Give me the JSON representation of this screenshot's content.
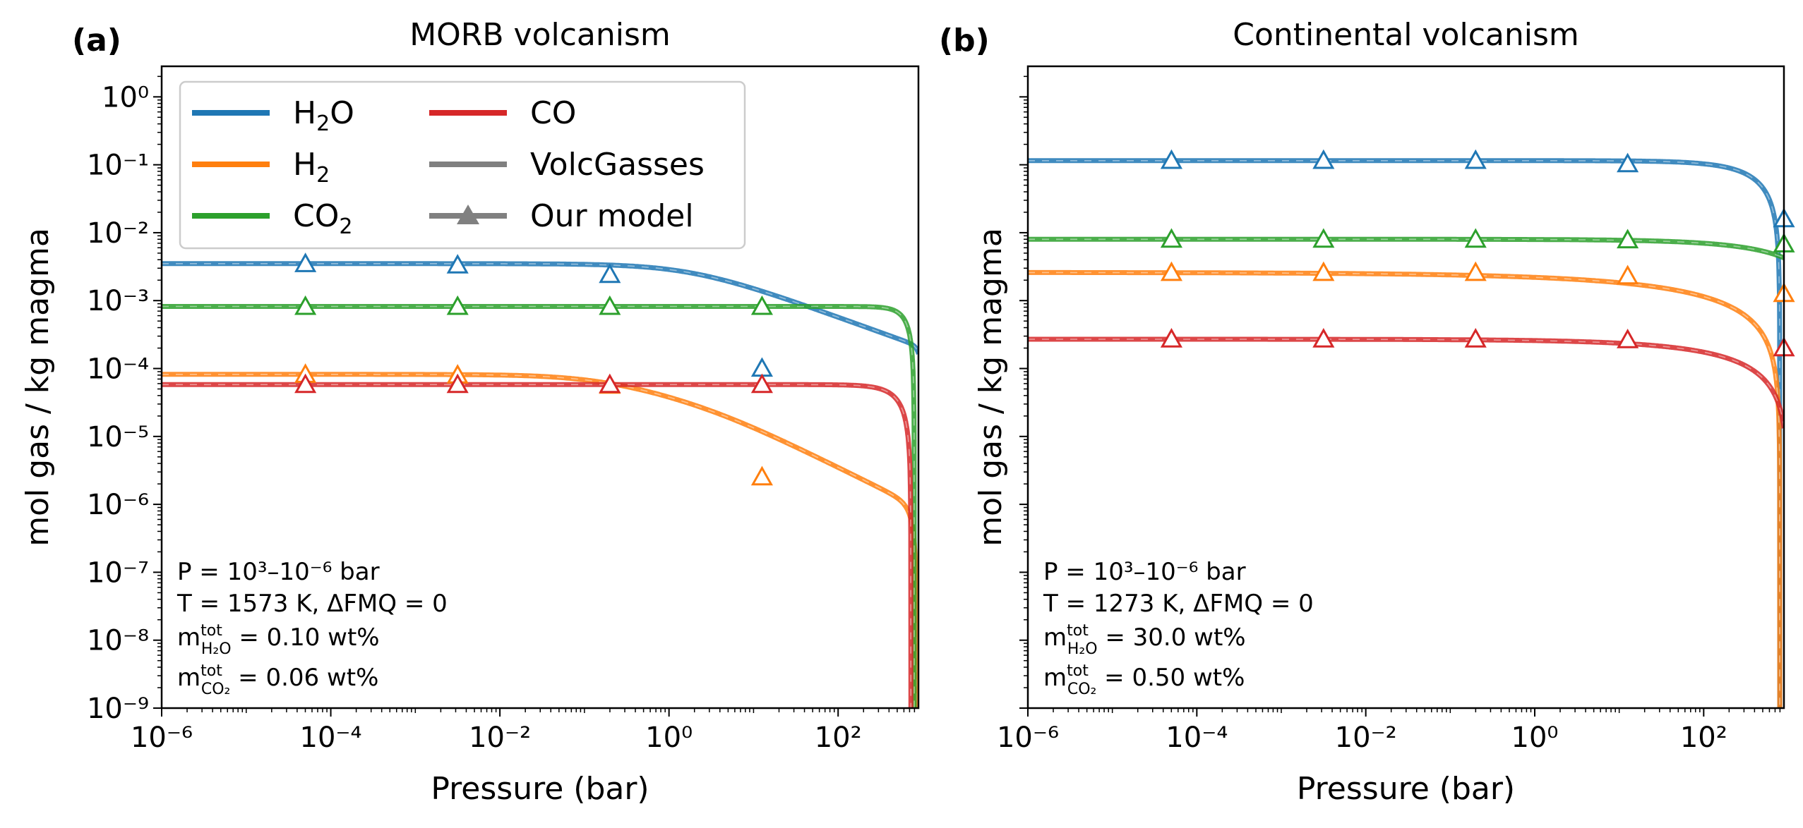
{
  "chart_data": [
    {
      "type": "line",
      "panel_label": "(a)",
      "title": "MORB volcanism",
      "xlabel": "Pressure (bar)",
      "ylabel": "mol gas / kg magma",
      "xscale": "log",
      "yscale": "log",
      "xlim_exp": [
        -6,
        2.95
      ],
      "ylim_exp": [
        -9,
        0.45
      ],
      "xticks_exp": [
        -6,
        -4,
        -2,
        0,
        2
      ],
      "yticks_exp": [
        0,
        -1,
        -2,
        -3,
        -4,
        -5,
        -6,
        -7,
        -8,
        -9
      ],
      "legend": {
        "placement": "top-left",
        "entries": [
          {
            "key": "h2o",
            "base": "H",
            "sub": "2",
            "tail": "O",
            "style": "line",
            "color": "#1f77b4"
          },
          {
            "key": "h2",
            "base": "H",
            "sub": "2",
            "tail": "",
            "style": "line",
            "color": "#ff7f0e"
          },
          {
            "key": "co2",
            "base": "CO",
            "sub": "2",
            "tail": "",
            "style": "line",
            "color": "#2ca02c"
          },
          {
            "key": "co",
            "base": "CO",
            "sub": "",
            "tail": "",
            "style": "line",
            "color": "#d62728"
          },
          {
            "key": "volcgasses",
            "base": "VolcGasses",
            "sub": "",
            "tail": "",
            "style": "line",
            "color": "#808080"
          },
          {
            "key": "ourmodel",
            "base": "Our model",
            "sub": "",
            "tail": "",
            "style": "marker",
            "color": "#808080"
          }
        ]
      },
      "annotation": {
        "p_line": "P = 10³–10⁻⁶ bar",
        "t_line": "T = 1573 K, ΔFMQ = 0",
        "m1_value": " = 0.10 wt%",
        "m2_value": " = 0.06 wt%",
        "m_label": "m",
        "sup": "tot",
        "sub1": "H₂O",
        "sub2": "CO₂"
      },
      "markers_x_exp": [
        -4.3,
        -2.5,
        -0.7,
        1.1
      ],
      "series": [
        {
          "name": "H2O",
          "color": "#1f77b4",
          "kind": "water",
          "y0": 0.0035,
          "b": 0.45,
          "tail_dip": 0.85,
          "markers": [
            -2.46,
            -2.48,
            -2.62,
            -4.0
          ]
        },
        {
          "name": "H2",
          "color": "#ff7f0e",
          "kind": "hydrogen",
          "y0": 8.2e-05,
          "markers": [
            -4.09,
            -4.1,
            -4.25,
            -5.6
          ]
        },
        {
          "name": "CO2",
          "color": "#2ca02c",
          "kind": "flat",
          "y0": 0.00082,
          "pc": 2.9,
          "k": 3.8,
          "markers": [
            -3.09,
            -3.09,
            -3.09,
            -3.09
          ]
        },
        {
          "name": "CO",
          "color": "#d62728",
          "kind": "flat",
          "y0": 5.8e-05,
          "pc": 2.86,
          "k": 2.4,
          "markers": [
            -4.24,
            -4.24,
            -4.24,
            -4.24
          ]
        }
      ]
    },
    {
      "type": "line",
      "panel_label": "(b)",
      "title": "Continental volcanism",
      "xlabel": "Pressure (bar)",
      "ylabel": "mol gas / kg magma",
      "xscale": "log",
      "yscale": "log",
      "xlim_exp": [
        -6,
        2.95
      ],
      "ylim_exp": [
        -9,
        0.45
      ],
      "xticks_exp": [
        -6,
        -4,
        -2,
        0,
        2
      ],
      "yticks_exp": [
        0,
        -1,
        -2,
        -3,
        -4,
        -5,
        -6,
        -7,
        -8,
        -9
      ],
      "annotation": {
        "p_line": "P = 10³–10⁻⁶ bar",
        "t_line": "T = 1273 K, ΔFMQ = 0",
        "m1_value": " = 30.0 wt%",
        "m2_value": " = 0.50 wt%",
        "m_label": "m",
        "sup": "tot",
        "sub1": "H₂O",
        "sub2": "CO₂"
      },
      "markers_x_exp": [
        -4.3,
        -2.5,
        -0.7,
        1.1,
        2.95
      ],
      "series": [
        {
          "name": "H2O",
          "color": "#1f77b4",
          "kind": "flat",
          "y0": 0.115,
          "pc": 2.9,
          "k": 1.1,
          "markers": [
            -0.94,
            -0.94,
            -0.94,
            -0.99,
            -1.8
          ]
        },
        {
          "name": "H2",
          "color": "#ff7f0e",
          "kind": "flat",
          "y0": 0.0026,
          "pc": 2.9,
          "k": 0.28,
          "markers": [
            -2.59,
            -2.59,
            -2.59,
            -2.64,
            -2.9
          ]
        },
        {
          "name": "CO2",
          "color": "#2ca02c",
          "kind": "flat",
          "y0": 0.008,
          "pc": 3.5,
          "k": 0.6,
          "markers": [
            -2.1,
            -2.1,
            -2.1,
            -2.11,
            -2.17
          ]
        },
        {
          "name": "CO",
          "color": "#d62728",
          "kind": "flat",
          "y0": 0.00027,
          "pc": 3.0,
          "k": 0.45,
          "markers": [
            -3.57,
            -3.57,
            -3.57,
            -3.58,
            -3.7
          ]
        }
      ]
    }
  ]
}
